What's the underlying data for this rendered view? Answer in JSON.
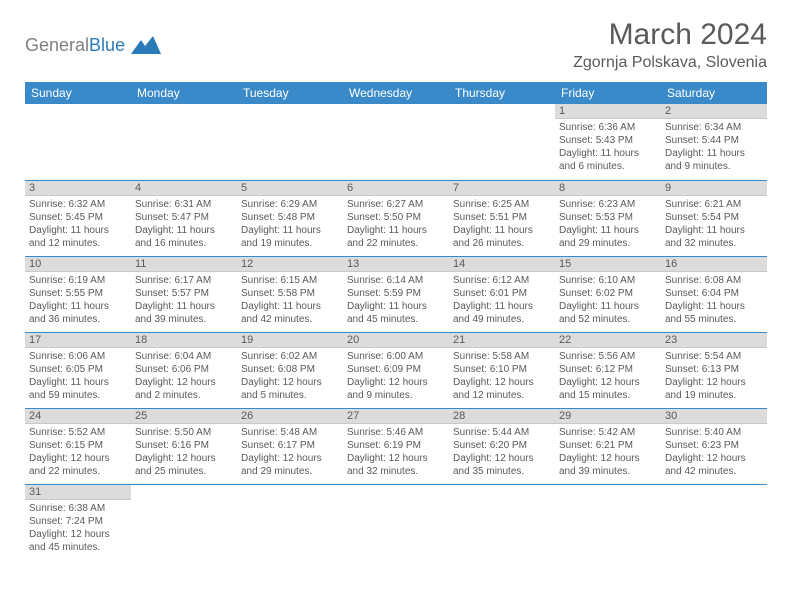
{
  "logo": {
    "word1": "General",
    "word2": "Blue"
  },
  "title": "March 2024",
  "location": "Zgornja Polskava, Slovenia",
  "colors": {
    "header_bg": "#3a8ac9",
    "header_text": "#ffffff",
    "date_bg": "#dcdcdc",
    "text": "#5a5a5a",
    "row_border": "#3a8ac9"
  },
  "weekdays": [
    "Sunday",
    "Monday",
    "Tuesday",
    "Wednesday",
    "Thursday",
    "Friday",
    "Saturday"
  ],
  "cells": [
    {
      "date": "",
      "sunrise": "",
      "sunset": "",
      "daylight": ""
    },
    {
      "date": "",
      "sunrise": "",
      "sunset": "",
      "daylight": ""
    },
    {
      "date": "",
      "sunrise": "",
      "sunset": "",
      "daylight": ""
    },
    {
      "date": "",
      "sunrise": "",
      "sunset": "",
      "daylight": ""
    },
    {
      "date": "",
      "sunrise": "",
      "sunset": "",
      "daylight": ""
    },
    {
      "date": "1",
      "sunrise": "Sunrise: 6:36 AM",
      "sunset": "Sunset: 5:43 PM",
      "daylight": "Daylight: 11 hours and 6 minutes."
    },
    {
      "date": "2",
      "sunrise": "Sunrise: 6:34 AM",
      "sunset": "Sunset: 5:44 PM",
      "daylight": "Daylight: 11 hours and 9 minutes."
    },
    {
      "date": "3",
      "sunrise": "Sunrise: 6:32 AM",
      "sunset": "Sunset: 5:45 PM",
      "daylight": "Daylight: 11 hours and 12 minutes."
    },
    {
      "date": "4",
      "sunrise": "Sunrise: 6:31 AM",
      "sunset": "Sunset: 5:47 PM",
      "daylight": "Daylight: 11 hours and 16 minutes."
    },
    {
      "date": "5",
      "sunrise": "Sunrise: 6:29 AM",
      "sunset": "Sunset: 5:48 PM",
      "daylight": "Daylight: 11 hours and 19 minutes."
    },
    {
      "date": "6",
      "sunrise": "Sunrise: 6:27 AM",
      "sunset": "Sunset: 5:50 PM",
      "daylight": "Daylight: 11 hours and 22 minutes."
    },
    {
      "date": "7",
      "sunrise": "Sunrise: 6:25 AM",
      "sunset": "Sunset: 5:51 PM",
      "daylight": "Daylight: 11 hours and 26 minutes."
    },
    {
      "date": "8",
      "sunrise": "Sunrise: 6:23 AM",
      "sunset": "Sunset: 5:53 PM",
      "daylight": "Daylight: 11 hours and 29 minutes."
    },
    {
      "date": "9",
      "sunrise": "Sunrise: 6:21 AM",
      "sunset": "Sunset: 5:54 PM",
      "daylight": "Daylight: 11 hours and 32 minutes."
    },
    {
      "date": "10",
      "sunrise": "Sunrise: 6:19 AM",
      "sunset": "Sunset: 5:55 PM",
      "daylight": "Daylight: 11 hours and 36 minutes."
    },
    {
      "date": "11",
      "sunrise": "Sunrise: 6:17 AM",
      "sunset": "Sunset: 5:57 PM",
      "daylight": "Daylight: 11 hours and 39 minutes."
    },
    {
      "date": "12",
      "sunrise": "Sunrise: 6:15 AM",
      "sunset": "Sunset: 5:58 PM",
      "daylight": "Daylight: 11 hours and 42 minutes."
    },
    {
      "date": "13",
      "sunrise": "Sunrise: 6:14 AM",
      "sunset": "Sunset: 5:59 PM",
      "daylight": "Daylight: 11 hours and 45 minutes."
    },
    {
      "date": "14",
      "sunrise": "Sunrise: 6:12 AM",
      "sunset": "Sunset: 6:01 PM",
      "daylight": "Daylight: 11 hours and 49 minutes."
    },
    {
      "date": "15",
      "sunrise": "Sunrise: 6:10 AM",
      "sunset": "Sunset: 6:02 PM",
      "daylight": "Daylight: 11 hours and 52 minutes."
    },
    {
      "date": "16",
      "sunrise": "Sunrise: 6:08 AM",
      "sunset": "Sunset: 6:04 PM",
      "daylight": "Daylight: 11 hours and 55 minutes."
    },
    {
      "date": "17",
      "sunrise": "Sunrise: 6:06 AM",
      "sunset": "Sunset: 6:05 PM",
      "daylight": "Daylight: 11 hours and 59 minutes."
    },
    {
      "date": "18",
      "sunrise": "Sunrise: 6:04 AM",
      "sunset": "Sunset: 6:06 PM",
      "daylight": "Daylight: 12 hours and 2 minutes."
    },
    {
      "date": "19",
      "sunrise": "Sunrise: 6:02 AM",
      "sunset": "Sunset: 6:08 PM",
      "daylight": "Daylight: 12 hours and 5 minutes."
    },
    {
      "date": "20",
      "sunrise": "Sunrise: 6:00 AM",
      "sunset": "Sunset: 6:09 PM",
      "daylight": "Daylight: 12 hours and 9 minutes."
    },
    {
      "date": "21",
      "sunrise": "Sunrise: 5:58 AM",
      "sunset": "Sunset: 6:10 PM",
      "daylight": "Daylight: 12 hours and 12 minutes."
    },
    {
      "date": "22",
      "sunrise": "Sunrise: 5:56 AM",
      "sunset": "Sunset: 6:12 PM",
      "daylight": "Daylight: 12 hours and 15 minutes."
    },
    {
      "date": "23",
      "sunrise": "Sunrise: 5:54 AM",
      "sunset": "Sunset: 6:13 PM",
      "daylight": "Daylight: 12 hours and 19 minutes."
    },
    {
      "date": "24",
      "sunrise": "Sunrise: 5:52 AM",
      "sunset": "Sunset: 6:15 PM",
      "daylight": "Daylight: 12 hours and 22 minutes."
    },
    {
      "date": "25",
      "sunrise": "Sunrise: 5:50 AM",
      "sunset": "Sunset: 6:16 PM",
      "daylight": "Daylight: 12 hours and 25 minutes."
    },
    {
      "date": "26",
      "sunrise": "Sunrise: 5:48 AM",
      "sunset": "Sunset: 6:17 PM",
      "daylight": "Daylight: 12 hours and 29 minutes."
    },
    {
      "date": "27",
      "sunrise": "Sunrise: 5:46 AM",
      "sunset": "Sunset: 6:19 PM",
      "daylight": "Daylight: 12 hours and 32 minutes."
    },
    {
      "date": "28",
      "sunrise": "Sunrise: 5:44 AM",
      "sunset": "Sunset: 6:20 PM",
      "daylight": "Daylight: 12 hours and 35 minutes."
    },
    {
      "date": "29",
      "sunrise": "Sunrise: 5:42 AM",
      "sunset": "Sunset: 6:21 PM",
      "daylight": "Daylight: 12 hours and 39 minutes."
    },
    {
      "date": "30",
      "sunrise": "Sunrise: 5:40 AM",
      "sunset": "Sunset: 6:23 PM",
      "daylight": "Daylight: 12 hours and 42 minutes."
    },
    {
      "date": "31",
      "sunrise": "Sunrise: 6:38 AM",
      "sunset": "Sunset: 7:24 PM",
      "daylight": "Daylight: 12 hours and 45 minutes."
    },
    {
      "date": "",
      "sunrise": "",
      "sunset": "",
      "daylight": ""
    },
    {
      "date": "",
      "sunrise": "",
      "sunset": "",
      "daylight": ""
    },
    {
      "date": "",
      "sunrise": "",
      "sunset": "",
      "daylight": ""
    },
    {
      "date": "",
      "sunrise": "",
      "sunset": "",
      "daylight": ""
    },
    {
      "date": "",
      "sunrise": "",
      "sunset": "",
      "daylight": ""
    },
    {
      "date": "",
      "sunrise": "",
      "sunset": "",
      "daylight": ""
    }
  ]
}
